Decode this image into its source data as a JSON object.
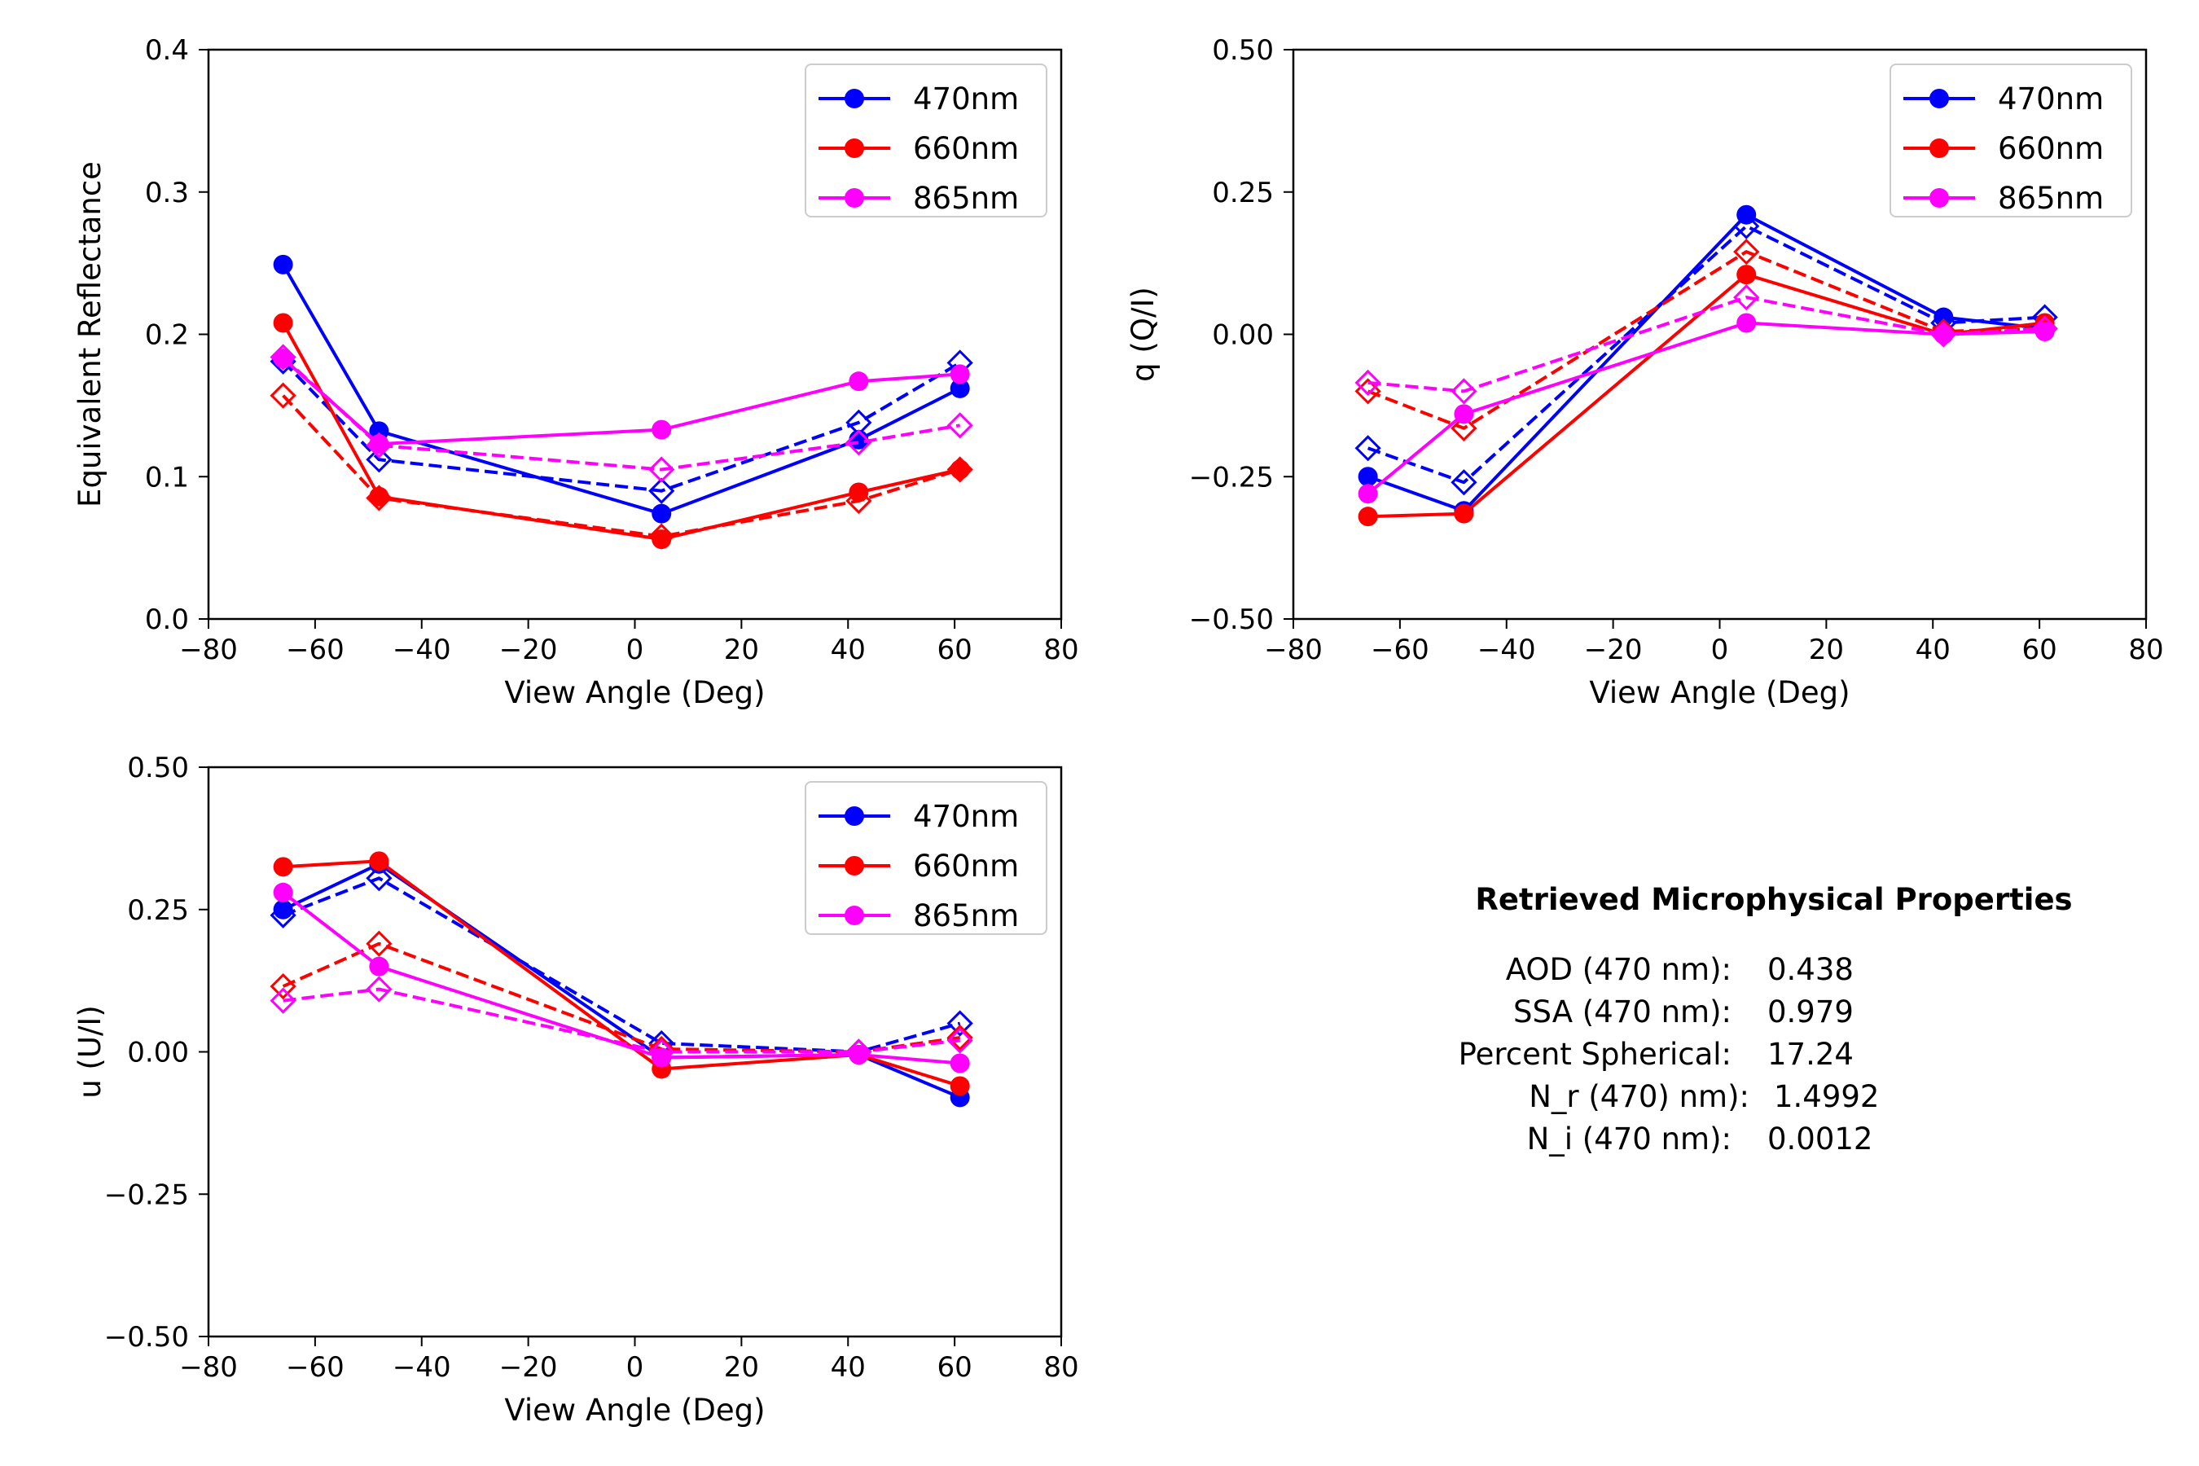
{
  "colors": {
    "470nm": "#0000ff",
    "660nm": "#ff0000",
    "865nm": "#ff00ff"
  },
  "chart_data": [
    {
      "type": "line",
      "id": "reflectance",
      "xlabel": "View Angle (Deg)",
      "ylabel": "Equivalent Reflectance",
      "xlim": [
        -80,
        80
      ],
      "ylim": [
        0.0,
        0.4
      ],
      "xticks": [
        -80,
        -60,
        -40,
        -20,
        0,
        20,
        40,
        60,
        80
      ],
      "xtick_labels": [
        "−80",
        "−60",
        "−40",
        "−20",
        "0",
        "20",
        "40",
        "60",
        "80"
      ],
      "yticks": [
        0.0,
        0.1,
        0.2,
        0.3,
        0.4
      ],
      "ytick_labels": [
        "0.0",
        "0.1",
        "0.2",
        "0.3",
        "0.4"
      ],
      "legend": {
        "position": "upper-right",
        "entries": [
          "470nm",
          "660nm",
          "865nm"
        ]
      },
      "x": [
        -66,
        -48,
        5,
        42,
        61
      ],
      "series": [
        {
          "name": "470nm",
          "kind": "measured",
          "color": "#0000ff",
          "values": [
            0.249,
            0.132,
            0.074,
            0.126,
            0.162
          ]
        },
        {
          "name": "470nm",
          "kind": "modeled",
          "color": "#0000ff",
          "values": [
            0.181,
            0.112,
            0.09,
            0.138,
            0.18
          ]
        },
        {
          "name": "660nm",
          "kind": "measured",
          "color": "#ff0000",
          "values": [
            0.208,
            0.086,
            0.056,
            0.089,
            0.105
          ]
        },
        {
          "name": "660nm",
          "kind": "modeled",
          "color": "#ff0000",
          "values": [
            0.157,
            0.085,
            0.058,
            0.083,
            0.105
          ]
        },
        {
          "name": "865nm",
          "kind": "measured",
          "color": "#ff00ff",
          "values": [
            0.183,
            0.123,
            0.133,
            0.167,
            0.172
          ]
        },
        {
          "name": "865nm",
          "kind": "modeled",
          "color": "#ff00ff",
          "values": [
            0.184,
            0.122,
            0.105,
            0.124,
            0.136
          ]
        }
      ]
    },
    {
      "type": "line",
      "id": "q",
      "xlabel": "View Angle (Deg)",
      "ylabel": "q (Q/I)",
      "xlim": [
        -80,
        80
      ],
      "ylim": [
        -0.5,
        0.5
      ],
      "xticks": [
        -80,
        -60,
        -40,
        -20,
        0,
        20,
        40,
        60,
        80
      ],
      "xtick_labels": [
        "−80",
        "−60",
        "−40",
        "−20",
        "0",
        "20",
        "40",
        "60",
        "80"
      ],
      "yticks": [
        -0.5,
        -0.25,
        0.0,
        0.25,
        0.5
      ],
      "ytick_labels": [
        "−0.50",
        "−0.25",
        "0.00",
        "0.25",
        "0.50"
      ],
      "legend": {
        "position": "upper-right",
        "entries": [
          "470nm",
          "660nm",
          "865nm"
        ]
      },
      "x": [
        -66,
        -48,
        5,
        42,
        61
      ],
      "series": [
        {
          "name": "470nm",
          "kind": "measured",
          "color": "#0000ff",
          "values": [
            -0.25,
            -0.31,
            0.21,
            0.03,
            0.01
          ]
        },
        {
          "name": "470nm",
          "kind": "modeled",
          "color": "#0000ff",
          "values": [
            -0.2,
            -0.26,
            0.19,
            0.02,
            0.03
          ]
        },
        {
          "name": "660nm",
          "kind": "measured",
          "color": "#ff0000",
          "values": [
            -0.32,
            -0.315,
            0.105,
            0.0,
            0.02
          ]
        },
        {
          "name": "660nm",
          "kind": "modeled",
          "color": "#ff0000",
          "values": [
            -0.1,
            -0.165,
            0.145,
            0.005,
            0.01
          ]
        },
        {
          "name": "865nm",
          "kind": "measured",
          "color": "#ff00ff",
          "values": [
            -0.28,
            -0.14,
            0.02,
            0.0,
            0.005
          ]
        },
        {
          "name": "865nm",
          "kind": "modeled",
          "color": "#ff00ff",
          "values": [
            -0.085,
            -0.1,
            0.065,
            0.0,
            0.01
          ]
        }
      ]
    },
    {
      "type": "line",
      "id": "u",
      "xlabel": "View Angle (Deg)",
      "ylabel": "u (U/I)",
      "xlim": [
        -80,
        80
      ],
      "ylim": [
        -0.5,
        0.5
      ],
      "xticks": [
        -80,
        -60,
        -40,
        -20,
        0,
        20,
        40,
        60,
        80
      ],
      "xtick_labels": [
        "−80",
        "−60",
        "−40",
        "−20",
        "0",
        "20",
        "40",
        "60",
        "80"
      ],
      "yticks": [
        -0.5,
        -0.25,
        0.0,
        0.25,
        0.5
      ],
      "ytick_labels": [
        "−0.50",
        "−0.25",
        "0.00",
        "0.25",
        "0.50"
      ],
      "legend": {
        "position": "upper-right",
        "entries": [
          "470nm",
          "660nm",
          "865nm"
        ]
      },
      "x": [
        -66,
        -48,
        5,
        42,
        61
      ],
      "series": [
        {
          "name": "470nm",
          "kind": "measured",
          "color": "#0000ff",
          "values": [
            0.25,
            0.33,
            -0.01,
            -0.005,
            -0.08
          ]
        },
        {
          "name": "470nm",
          "kind": "modeled",
          "color": "#0000ff",
          "values": [
            0.24,
            0.305,
            0.015,
            0.0,
            0.05
          ]
        },
        {
          "name": "660nm",
          "kind": "measured",
          "color": "#ff0000",
          "values": [
            0.325,
            0.335,
            -0.03,
            -0.005,
            -0.06
          ]
        },
        {
          "name": "660nm",
          "kind": "modeled",
          "color": "#ff0000",
          "values": [
            0.115,
            0.19,
            0.005,
            0.0,
            0.025
          ]
        },
        {
          "name": "865nm",
          "kind": "measured",
          "color": "#ff00ff",
          "values": [
            0.28,
            0.15,
            -0.01,
            -0.005,
            -0.02
          ]
        },
        {
          "name": "865nm",
          "kind": "modeled",
          "color": "#ff00ff",
          "values": [
            0.09,
            0.11,
            0.0,
            0.0,
            0.02
          ]
        }
      ]
    }
  ],
  "properties": {
    "title": "Retrieved Microphysical Properties",
    "lines": [
      {
        "label": "AOD (470 nm):",
        "value": "0.438"
      },
      {
        "label": "SSA (470 nm):",
        "value": "0.979"
      },
      {
        "label": "Percent Spherical:",
        "value": "17.24"
      },
      {
        "label": "N_r (470) nm):",
        "value": "1.4992"
      },
      {
        "label": "N_i (470 nm):",
        "value": "0.0012"
      }
    ]
  }
}
